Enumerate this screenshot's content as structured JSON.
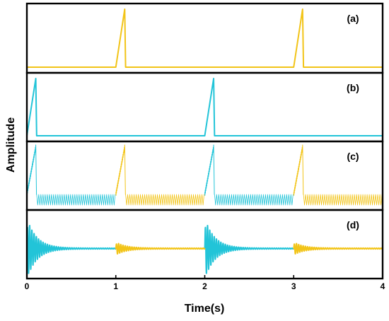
{
  "chart_data": {
    "type": "line",
    "xlabel": "Time(s)",
    "ylabel": "Amplitude",
    "xlim": [
      0,
      4
    ],
    "x_ticks": [
      "0",
      "1",
      "2",
      "3",
      "4"
    ],
    "grid": false,
    "colors": {
      "yellow": "#f2c418",
      "cyan": "#22c4d8"
    },
    "panels": [
      {
        "label": "(a)",
        "series": [
          {
            "color": "yellow",
            "x": [
              0,
              1.0,
              1.1,
              1.11,
              3.0,
              3.1,
              3.11,
              4.0
            ],
            "y": [
              0,
              0,
              1,
              0,
              0,
              1,
              0,
              0
            ]
          }
        ]
      },
      {
        "label": "(b)",
        "series": [
          {
            "color": "cyan",
            "x": [
              0,
              0.1,
              0.11,
              2.0,
              2.1,
              2.11,
              4.0
            ],
            "y": [
              0,
              1,
              0,
              0,
              1,
              0,
              0
            ]
          }
        ]
      },
      {
        "label": "(c)",
        "series": [
          {
            "color": "cyan",
            "kind": "oscillating_ramp",
            "segments": [
              [
                0,
                0.1
              ],
              [
                2.0,
                2.1
              ]
            ]
          },
          {
            "color": "cyan",
            "kind": "dense_oscillation",
            "segments": [
              [
                0.11,
                1.0
              ],
              [
                2.11,
                3.0
              ]
            ]
          },
          {
            "color": "yellow",
            "kind": "oscillating_ramp",
            "segments": [
              [
                1.0,
                1.1
              ],
              [
                3.0,
                3.1
              ]
            ]
          },
          {
            "color": "yellow",
            "kind": "dense_oscillation",
            "segments": [
              [
                1.11,
                2.0
              ],
              [
                3.11,
                4.0
              ]
            ]
          }
        ]
      },
      {
        "label": "(d)",
        "series": [
          {
            "color": "cyan",
            "kind": "damped_oscillation",
            "onsets": [
              0.0,
              2.0
            ],
            "peak_amplitude": 1.0,
            "segments": [
              [
                0,
                1.0
              ],
              [
                2.0,
                3.0
              ]
            ]
          },
          {
            "color": "yellow",
            "kind": "damped_oscillation",
            "onsets": [
              1.0,
              3.0
            ],
            "peak_amplitude": 0.2,
            "segments": [
              [
                1.0,
                2.0
              ],
              [
                3.0,
                4.0
              ]
            ]
          }
        ]
      }
    ]
  }
}
